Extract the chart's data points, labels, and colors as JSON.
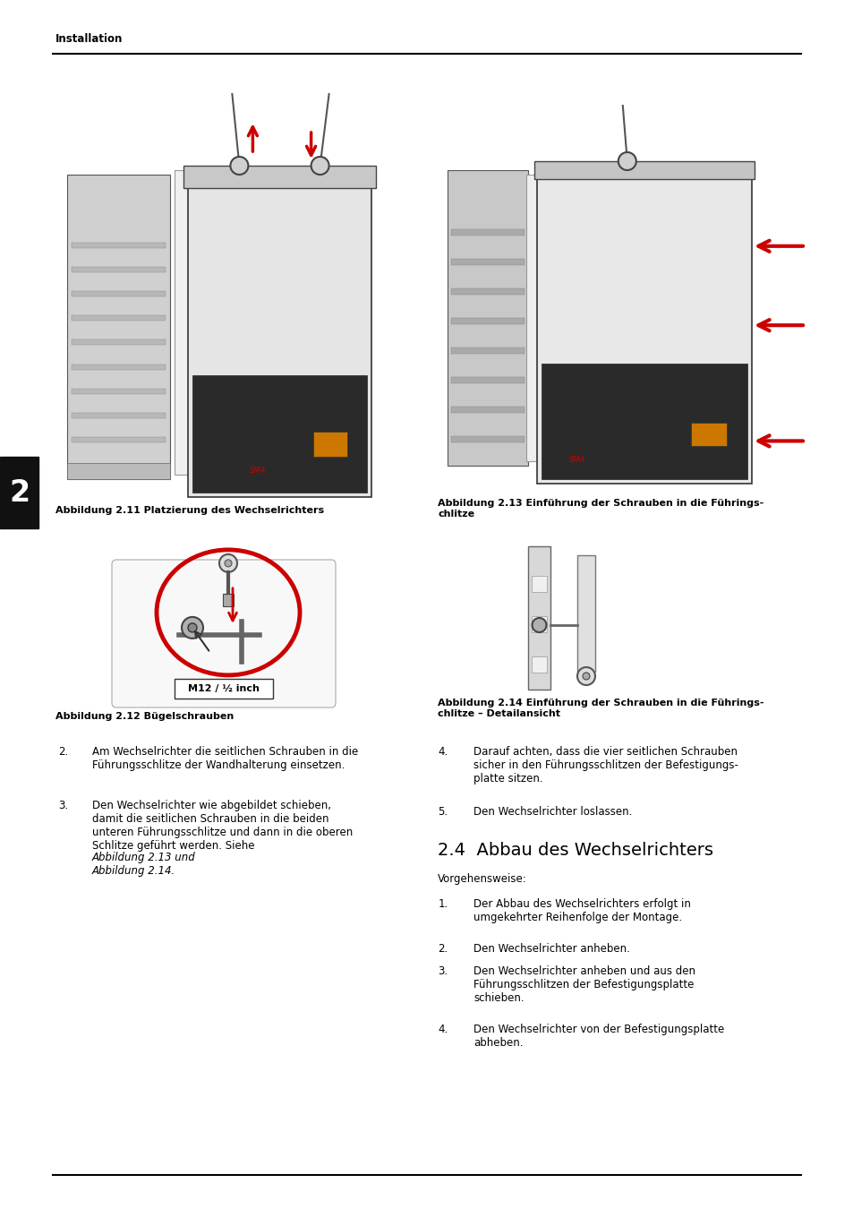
{
  "page_bg": "#ffffff",
  "line_color": "#000000",
  "red_color": "#cc0000",
  "header_text": "Installation",
  "header_font_size": 8.5,
  "sidebar_color": "#111111",
  "sidebar_number": "2",
  "sidebar_num_fontsize": 24,
  "fig1_caption": "Abbildung 2.11 Platzierung des Wechselrichters",
  "fig2_caption": "Abbildung 2.12 Bügelschrauben",
  "fig3_caption_line1": "Abbildung 2.13 Einführung der Schrauben in die Führings-",
  "fig3_caption_line2": "chlitze",
  "fig4_caption_line1": "Abbildung 2.14 Einführung der Schrauben in die Führings-",
  "fig4_caption_line2": "chlitze – Detailansicht",
  "caption_fontsize": 8,
  "section_title": "2.4  Abbau des Wechselrichters",
  "section_title_fontsize": 14,
  "vorgehensweise_text": "Vorgehensweise:",
  "list_fontsize": 8.5,
  "left_col_item2_num": "2.",
  "left_col_item2_text": "Am Wechselrichter die seitlichen Schrauben in die\nFührungsschlitze der Wandhalterung einsetzen.",
  "left_col_item3_num": "3.",
  "left_col_item3_text_pre": "Den Wechselrichter wie abgebildet schieben,\ndamit die seitlichen Schrauben in die beiden\nunteren Führungsschlitze und dann in die oberen\nSchlitze geführt werden. Siehe ",
  "left_col_item3_italic1": "Abbildung 2.13",
  "left_col_item3_mid": " und\n",
  "left_col_item3_italic2": "Abbildung 2.14",
  "left_col_item3_end": ".",
  "right_col_item4_num": "4.",
  "right_col_item4_text": "Darauf achten, dass die vier seitlichen Schrauben\nsicher in den Führungsschlitzen der Befestigungs-\nplatte sitzen.",
  "right_col_item5_num": "5.",
  "right_col_item5_text": "Den Wechselrichter loslassen.",
  "right_col_item1_num": "1.",
  "right_col_item1_text": "Der Abbau des Wechselrichters erfolgt in\numgekehrter Reihenfolge der Montage.",
  "right_col_item2_num": "2.",
  "right_col_item2_text": "Den Wechselrichter anheben.",
  "right_col_item3_num": "3.",
  "right_col_item3_text": "Den Wechselrichter anheben und aus den\nFührungsschlitzen der Befestigungsplatte\nschieben.",
  "right_col_item4b_num": "4.",
  "right_col_item4b_text": "Den Wechselrichter von der Befestigungsplatte\nabheben."
}
